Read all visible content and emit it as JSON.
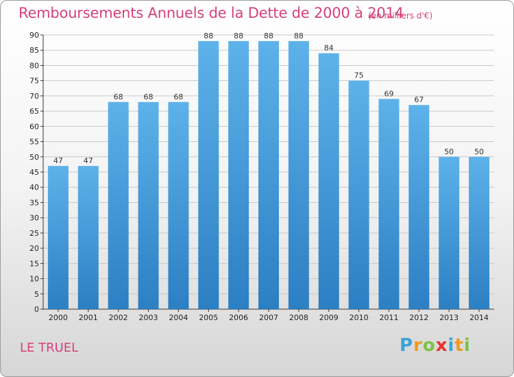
{
  "header": {
    "title": "Remboursements Annuels de la Dette de 2000 à 2014",
    "subtitle": "(en milliers d'€)"
  },
  "footer": {
    "town": "LE TRUEL",
    "logo": {
      "letters": [
        "P",
        "r",
        "o",
        "x",
        "i",
        "t",
        "i"
      ],
      "colors": [
        "#3aa3d8",
        "#f39a1e",
        "#7cc242",
        "#e8312f",
        "#3aa3d8",
        "#f39a1e",
        "#7cc242"
      ]
    }
  },
  "colors": {
    "bar_top": "#5eb2ea",
    "bar_bottom": "#2b7fc3",
    "title": "#d6417a",
    "grid": "#c8c8c8"
  },
  "chart_data": {
    "type": "bar",
    "title": "Remboursements Annuels de la Dette de 2000 à 2014",
    "subtitle": "(en milliers d'€)",
    "categories": [
      "2000",
      "2001",
      "2002",
      "2003",
      "2004",
      "2005",
      "2006",
      "2007",
      "2008",
      "2009",
      "2010",
      "2011",
      "2012",
      "2013",
      "2014"
    ],
    "values": [
      47,
      47,
      68,
      68,
      68,
      88,
      88,
      88,
      88,
      84,
      75,
      69,
      67,
      50,
      50
    ],
    "ylim": [
      0,
      90
    ],
    "yticks": [
      0,
      5,
      10,
      15,
      20,
      25,
      30,
      35,
      40,
      45,
      50,
      55,
      60,
      65,
      70,
      75,
      80,
      85,
      90
    ],
    "grid": true,
    "data_labels": true
  }
}
